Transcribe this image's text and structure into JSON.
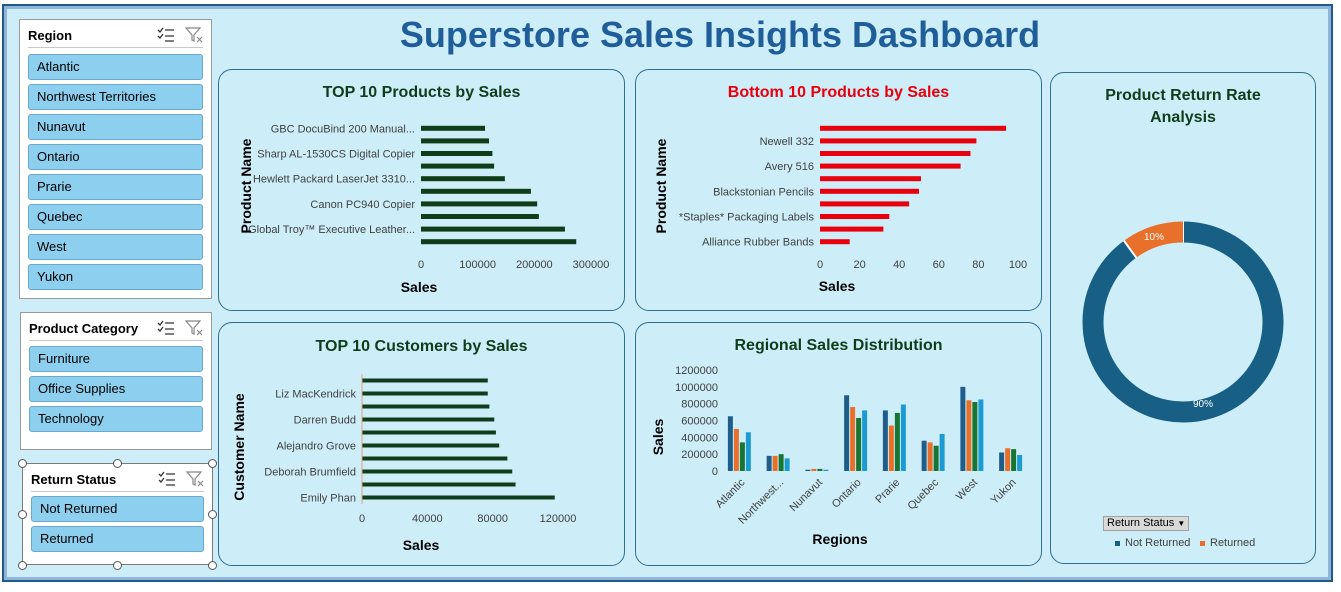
{
  "dashboard": {
    "title": "Superstore Sales Insights Dashboard"
  },
  "slicers": {
    "region": {
      "title": "Region",
      "items": [
        "Atlantic",
        "Northwest Territories",
        "Nunavut",
        "Ontario",
        "Prarie",
        "Quebec",
        "West",
        "Yukon"
      ]
    },
    "category": {
      "title": "Product Category",
      "items": [
        "Furniture",
        "Office Supplies",
        "Technology"
      ]
    },
    "return_status": {
      "title": "Return Status",
      "items": [
        "Not Returned",
        "Returned"
      ]
    }
  },
  "colors": {
    "navy": "#1f5e99",
    "dark_green": "#0f3d1a",
    "red": "#e8000d",
    "donut_blue": "#175f84",
    "donut_orange": "#e8702a"
  },
  "legend": {
    "button": "Return Status",
    "not_returned": "Not Returned",
    "returned": "Returned"
  },
  "chart_data": [
    {
      "type": "bar",
      "orientation": "horizontal",
      "title": "TOP 10 Products by Sales",
      "xlabel": "Sales",
      "ylabel": "Product Name",
      "xlim": [
        0,
        300000
      ],
      "xticks": [
        "0",
        "100000",
        "200000",
        "300000"
      ],
      "categories": [
        "GBC DocuBind 200 Manual...",
        "",
        "Sharp AL-1530CS Digital Copier",
        "",
        "Hewlett Packard LaserJet 3310...",
        "",
        "Canon PC940 Copier",
        "",
        "Global Troy™ Executive Leather...",
        ""
      ],
      "values": [
        113000,
        120000,
        126000,
        129000,
        148000,
        194000,
        205000,
        208000,
        254000,
        274000
      ]
    },
    {
      "type": "bar",
      "orientation": "horizontal",
      "title": "Bottom 10 Products by Sales",
      "xlabel": "Sales",
      "ylabel": "Product Name",
      "xlim": [
        0,
        100
      ],
      "xticks": [
        "0",
        "20",
        "40",
        "60",
        "80",
        "100"
      ],
      "categories": [
        "",
        "Newell 332",
        "",
        "Avery 516",
        "",
        "Blackstonian Pencils",
        "",
        "*Staples* Packaging Labels",
        "",
        "Alliance Rubber Bands"
      ],
      "values": [
        94,
        79,
        76,
        71,
        51,
        50,
        45,
        35,
        32,
        15
      ]
    },
    {
      "type": "bar",
      "orientation": "horizontal",
      "title": "TOP 10 Customers by Sales",
      "xlabel": "Sales",
      "ylabel": "Customer Name",
      "xlim": [
        0,
        120000
      ],
      "xticks": [
        "0",
        "40000",
        "80000",
        "120000"
      ],
      "categories": [
        "",
        "Liz MacKendrick",
        "",
        "Darren Budd",
        "",
        "Alejandro Grove",
        "",
        "Deborah Brumfield",
        "",
        "Emily Phan"
      ],
      "values": [
        77000,
        77000,
        78000,
        81000,
        82000,
        84000,
        89000,
        92000,
        94000,
        118000
      ]
    },
    {
      "type": "bar",
      "title": "Regional Sales Distribution",
      "xlabel": "Regions",
      "ylabel": "Sales",
      "ylim": [
        0,
        1200000
      ],
      "yticks": [
        "0",
        "200000",
        "400000",
        "600000",
        "800000",
        "1000000",
        "1200000"
      ],
      "categories": [
        "Atlantic",
        "Northwest...",
        "Nunavut",
        "Ontario",
        "Prarie",
        "Quebec",
        "West",
        "Yukon"
      ],
      "series": [
        {
          "values": [
            650000,
            180000,
            15000,
            900000,
            720000,
            360000,
            1000000,
            220000
          ],
          "color": "#1f5e8a"
        },
        {
          "values": [
            500000,
            180000,
            25000,
            760000,
            540000,
            340000,
            840000,
            270000
          ],
          "color": "#e8702a"
        },
        {
          "values": [
            340000,
            200000,
            25000,
            630000,
            690000,
            300000,
            820000,
            260000
          ],
          "color": "#197532"
        },
        {
          "values": [
            460000,
            150000,
            15000,
            720000,
            790000,
            440000,
            850000,
            190000
          ],
          "color": "#1c9bd0"
        }
      ]
    },
    {
      "type": "pie",
      "variant": "donut",
      "title": "Product Return Rate Analysis",
      "categories": [
        "Not Returned",
        "Returned"
      ],
      "values": [
        90,
        10
      ],
      "labels": [
        "90%",
        "10%"
      ]
    }
  ]
}
